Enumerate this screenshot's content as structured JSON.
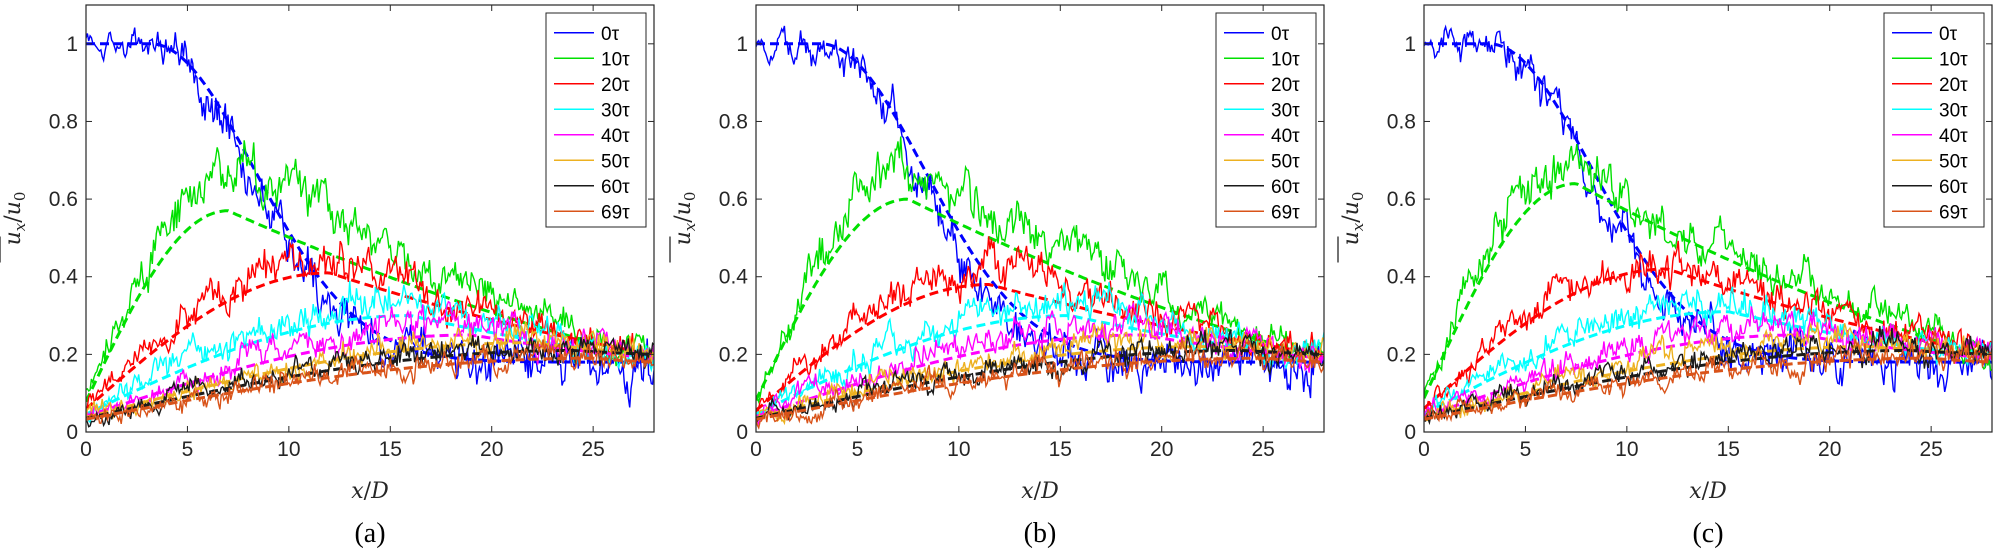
{
  "figure": {
    "panels": [
      {
        "caption": "(a)"
      },
      {
        "caption": "(b)"
      },
      {
        "caption": "(c)"
      }
    ],
    "xlabel_var": "x",
    "xlabel_sep": "/",
    "xlabel_ref": "D",
    "ylabel_num": "u",
    "ylabel_num_sub": "x",
    "ylabel_sep": "/",
    "ylabel_den": "u",
    "ylabel_den_sub": "0"
  },
  "chart_data": [
    {
      "type": "line",
      "panel": "(a)",
      "xlim": [
        0,
        28
      ],
      "ylim": [
        0,
        1.1
      ],
      "xticks": [
        0,
        5,
        10,
        15,
        20,
        25
      ],
      "yticks": [
        0,
        0.2,
        0.4,
        0.6,
        0.8,
        1
      ],
      "ytick_labels": [
        "0",
        "0.2",
        "0.4",
        "0.6",
        "0.8",
        "1"
      ],
      "legend_position": "top-right",
      "grid": false,
      "series": [
        {
          "name": "0τ",
          "color": "#0000ff",
          "peak_x": 0,
          "peak_y": 1.0,
          "fit_peak_x": 0,
          "fit_peak_y": 1.0,
          "end_y": 0.18
        },
        {
          "name": "10τ",
          "color": "#00e000",
          "peak_x": 7.5,
          "peak_y": 0.69,
          "fit_peak_x": 7,
          "fit_peak_y": 0.57,
          "end_y": 0.19
        },
        {
          "name": "20τ",
          "color": "#ff0000",
          "peak_x": 12,
          "peak_y": 0.44,
          "fit_peak_x": 12,
          "fit_peak_y": 0.41,
          "end_y": 0.2
        },
        {
          "name": "30τ",
          "color": "#00ffff",
          "peak_x": 16,
          "peak_y": 0.34,
          "fit_peak_x": 16,
          "fit_peak_y": 0.3,
          "end_y": 0.19
        },
        {
          "name": "40τ",
          "color": "#ff00ff",
          "peak_x": 19,
          "peak_y": 0.28,
          "fit_peak_x": 19,
          "fit_peak_y": 0.25,
          "end_y": 0.19
        },
        {
          "name": "50τ",
          "color": "#edb120",
          "peak_x": 22,
          "peak_y": 0.24,
          "fit_peak_x": 22,
          "fit_peak_y": 0.23,
          "end_y": 0.2
        },
        {
          "name": "60τ",
          "color": "#1a1a1a",
          "peak_x": 24,
          "peak_y": 0.22,
          "fit_peak_x": 24,
          "fit_peak_y": 0.21,
          "end_y": 0.2
        },
        {
          "name": "69τ",
          "color": "#d95319",
          "peak_x": 25,
          "peak_y": 0.2,
          "fit_peak_x": 25,
          "fit_peak_y": 0.19,
          "end_y": 0.18
        }
      ]
    },
    {
      "type": "line",
      "panel": "(b)",
      "xlim": [
        0,
        28
      ],
      "ylim": [
        0,
        1.1
      ],
      "xticks": [
        0,
        5,
        10,
        15,
        20,
        25
      ],
      "yticks": [
        0,
        0.2,
        0.4,
        0.6,
        0.8,
        1
      ],
      "ytick_labels": [
        "0",
        "0.2",
        "0.4",
        "0.6",
        "0.8",
        "1"
      ],
      "legend_position": "top-right",
      "grid": false,
      "series": [
        {
          "name": "0τ",
          "color": "#0000ff",
          "peak_x": 0,
          "peak_y": 1.0,
          "fit_peak_x": 0,
          "fit_peak_y": 1.0,
          "end_y": 0.18
        },
        {
          "name": "10τ",
          "color": "#00e000",
          "peak_x": 7.5,
          "peak_y": 0.69,
          "fit_peak_x": 7.5,
          "fit_peak_y": 0.6,
          "end_y": 0.19
        },
        {
          "name": "20τ",
          "color": "#ff0000",
          "peak_x": 12,
          "peak_y": 0.42,
          "fit_peak_x": 11.5,
          "fit_peak_y": 0.38,
          "end_y": 0.2
        },
        {
          "name": "30τ",
          "color": "#00ffff",
          "peak_x": 16,
          "peak_y": 0.34,
          "fit_peak_x": 15.5,
          "fit_peak_y": 0.3,
          "end_y": 0.19
        },
        {
          "name": "40τ",
          "color": "#ff00ff",
          "peak_x": 19,
          "peak_y": 0.28,
          "fit_peak_x": 19,
          "fit_peak_y": 0.25,
          "end_y": 0.19
        },
        {
          "name": "50τ",
          "color": "#edb120",
          "peak_x": 22,
          "peak_y": 0.24,
          "fit_peak_x": 22,
          "fit_peak_y": 0.22,
          "end_y": 0.2
        },
        {
          "name": "60τ",
          "color": "#1a1a1a",
          "peak_x": 24,
          "peak_y": 0.22,
          "fit_peak_x": 24,
          "fit_peak_y": 0.21,
          "end_y": 0.2
        },
        {
          "name": "69τ",
          "color": "#d95319",
          "peak_x": 25,
          "peak_y": 0.2,
          "fit_peak_x": 25,
          "fit_peak_y": 0.19,
          "end_y": 0.18
        }
      ]
    },
    {
      "type": "line",
      "panel": "(c)",
      "xlim": [
        0,
        28
      ],
      "ylim": [
        0,
        1.1
      ],
      "xticks": [
        0,
        5,
        10,
        15,
        20,
        25
      ],
      "yticks": [
        0,
        0.2,
        0.4,
        0.6,
        0.8,
        1
      ],
      "ytick_labels": [
        "0",
        "0.2",
        "0.4",
        "0.6",
        "0.8",
        "1"
      ],
      "legend_position": "top-right",
      "grid": false,
      "series": [
        {
          "name": "0τ",
          "color": "#0000ff",
          "peak_x": 0,
          "peak_y": 1.0,
          "fit_peak_x": 0,
          "fit_peak_y": 1.0,
          "end_y": 0.18
        },
        {
          "name": "10τ",
          "color": "#00e000",
          "peak_x": 7.5,
          "peak_y": 0.7,
          "fit_peak_x": 7.5,
          "fit_peak_y": 0.64,
          "end_y": 0.19
        },
        {
          "name": "20τ",
          "color": "#ff0000",
          "peak_x": 12,
          "peak_y": 0.44,
          "fit_peak_x": 12,
          "fit_peak_y": 0.42,
          "end_y": 0.2
        },
        {
          "name": "30τ",
          "color": "#00ffff",
          "peak_x": 15,
          "peak_y": 0.34,
          "fit_peak_x": 15,
          "fit_peak_y": 0.31,
          "end_y": 0.19
        },
        {
          "name": "40τ",
          "color": "#ff00ff",
          "peak_x": 19,
          "peak_y": 0.28,
          "fit_peak_x": 18.5,
          "fit_peak_y": 0.25,
          "end_y": 0.19
        },
        {
          "name": "50τ",
          "color": "#edb120",
          "peak_x": 22,
          "peak_y": 0.24,
          "fit_peak_x": 22,
          "fit_peak_y": 0.22,
          "end_y": 0.2
        },
        {
          "name": "60τ",
          "color": "#1a1a1a",
          "peak_x": 24,
          "peak_y": 0.22,
          "fit_peak_x": 24,
          "fit_peak_y": 0.21,
          "end_y": 0.2
        },
        {
          "name": "69τ",
          "color": "#d95319",
          "peak_x": 25,
          "peak_y": 0.2,
          "fit_peak_x": 25,
          "fit_peak_y": 0.19,
          "end_y": 0.18
        }
      ]
    }
  ]
}
